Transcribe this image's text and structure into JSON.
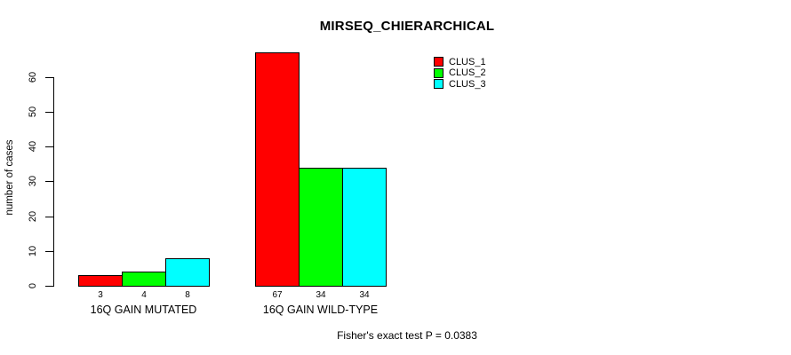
{
  "chart_data": {
    "type": "bar",
    "title": "MIRSEQ_CHIERARCHICAL",
    "xlabel": "",
    "ylabel": "number of cases",
    "categories": [
      "16Q GAIN MUTATED",
      "16Q GAIN WILD-TYPE"
    ],
    "series": [
      {
        "name": "CLUS_1",
        "color": "#ff0000",
        "values": [
          3,
          67
        ]
      },
      {
        "name": "CLUS_2",
        "color": "#00ff00",
        "values": [
          4,
          34
        ]
      },
      {
        "name": "CLUS_3",
        "color": "#00ffff",
        "values": [
          8,
          34
        ]
      }
    ],
    "bar_value_labels": [
      [
        3,
        4,
        8
      ],
      [
        67,
        34,
        34
      ]
    ],
    "yticks": [
      0,
      10,
      20,
      30,
      40,
      50,
      60
    ],
    "ylim": [
      0,
      67
    ],
    "grid": false,
    "legend_position": "top-right",
    "annotation": "Fisher's exact test P = 0.0383",
    "colors": {
      "background": "#ffffff",
      "axis": "#000000",
      "bar_border": "#000000",
      "text": "#000000"
    }
  }
}
